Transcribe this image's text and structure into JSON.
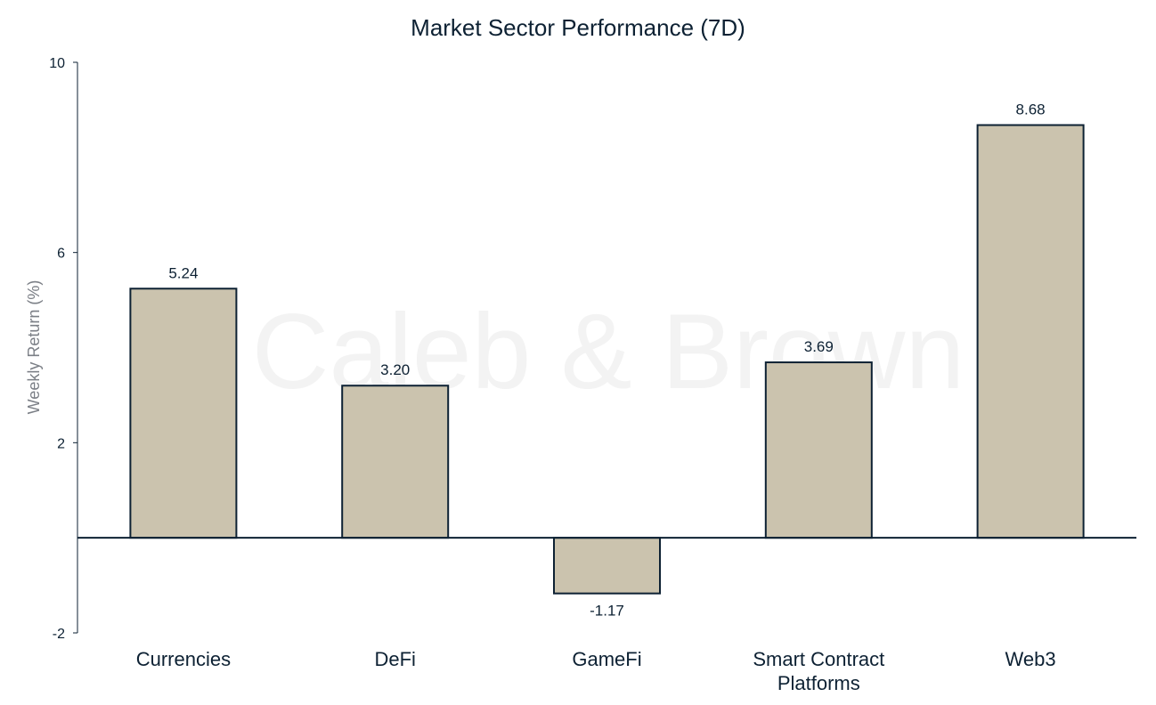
{
  "chart_data": {
    "type": "bar",
    "title": "Market Sector Performance (7D)",
    "xlabel": "",
    "ylabel": "Weekly  Return (%)",
    "ylim": [
      -2,
      10
    ],
    "yticks": [
      -2,
      2,
      6,
      10
    ],
    "categories": [
      [
        "Currencies"
      ],
      [
        "DeFi"
      ],
      [
        "GameFi"
      ],
      [
        "Smart Contract",
        "Platforms"
      ],
      [
        "Web3"
      ]
    ],
    "values": [
      5.24,
      3.2,
      -1.17,
      3.69,
      8.68
    ],
    "value_labels": [
      "5.24",
      "3.20",
      "-1.17",
      "3.69",
      "8.68"
    ],
    "grid": false,
    "legend": "none",
    "bar_color": "#cbc3ae",
    "bar_edge_color": "#0d2133"
  },
  "watermark": "Caleb & Brown"
}
